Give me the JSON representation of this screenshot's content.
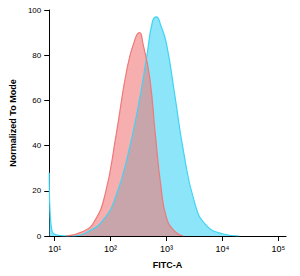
{
  "chart_data": {
    "type": "area",
    "x_label": "FITC-A",
    "y_label": "Normalized To Mode",
    "log": "x",
    "grid": false,
    "xlim": [
      8,
      137000
    ],
    "xticks": [
      {
        "value": 10,
        "label": "10¹"
      },
      {
        "value": 100,
        "label": "10²"
      },
      {
        "value": 1000,
        "label": "10³"
      },
      {
        "value": 10000,
        "label": "10⁴"
      },
      {
        "value": 100000,
        "label": "10⁵"
      }
    ],
    "ylim": [
      0,
      100
    ],
    "yticks": [
      0,
      20,
      40,
      60,
      80,
      100
    ],
    "series": [
      {
        "color": "#40d4f4",
        "x": [
          8,
          9,
          20,
          40,
          79,
          126,
          200,
          316,
          447,
          562,
          661,
          794,
          1000,
          1413,
          1995,
          3162,
          5012,
          10000,
          19953
        ],
        "values": [
          28,
          2,
          0,
          2,
          8,
          18,
          35,
          58,
          80,
          95,
          97,
          93,
          85,
          62,
          38,
          15,
          5,
          1,
          0
        ]
      },
      {
        "color": "#f07878",
        "x": [
          16,
          32,
          50,
          79,
          126,
          200,
          282,
          331,
          380,
          501,
          631,
          794,
          1000,
          1413,
          1995
        ],
        "values": [
          0,
          2,
          6,
          18,
          45,
          75,
          88,
          90,
          85,
          70,
          45,
          22,
          8,
          2,
          0
        ]
      }
    ]
  }
}
